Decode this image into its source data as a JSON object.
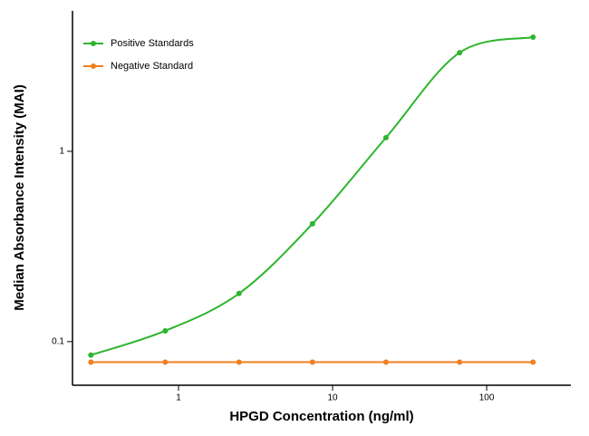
{
  "chart_data": {
    "type": "line",
    "xlabel": "HPGD Concentration (ng/ml)",
    "ylabel": "Median Absorbance Intensity (MAI)",
    "x": [
      0.27,
      0.82,
      2.47,
      7.4,
      22.2,
      66.7,
      200
    ],
    "series": [
      {
        "name": "Positive Standards",
        "color": "#2db52d",
        "values": [
          0.085,
          0.114,
          0.179,
          0.416,
          1.18,
          3.3,
          3.98
        ]
      },
      {
        "name": "Negative Standard",
        "color": "#f07f1f",
        "values": [
          0.078,
          0.078,
          0.078,
          0.078,
          0.078,
          0.078,
          0.078
        ]
      }
    ],
    "xlim": [
      0.205,
      352
    ],
    "ylim": [
      0.059,
      5.47
    ],
    "xticks": [
      1,
      10,
      100
    ],
    "yticks": [
      0.1,
      1
    ],
    "xscale": "log",
    "yscale": "log",
    "legend": "upper left"
  }
}
